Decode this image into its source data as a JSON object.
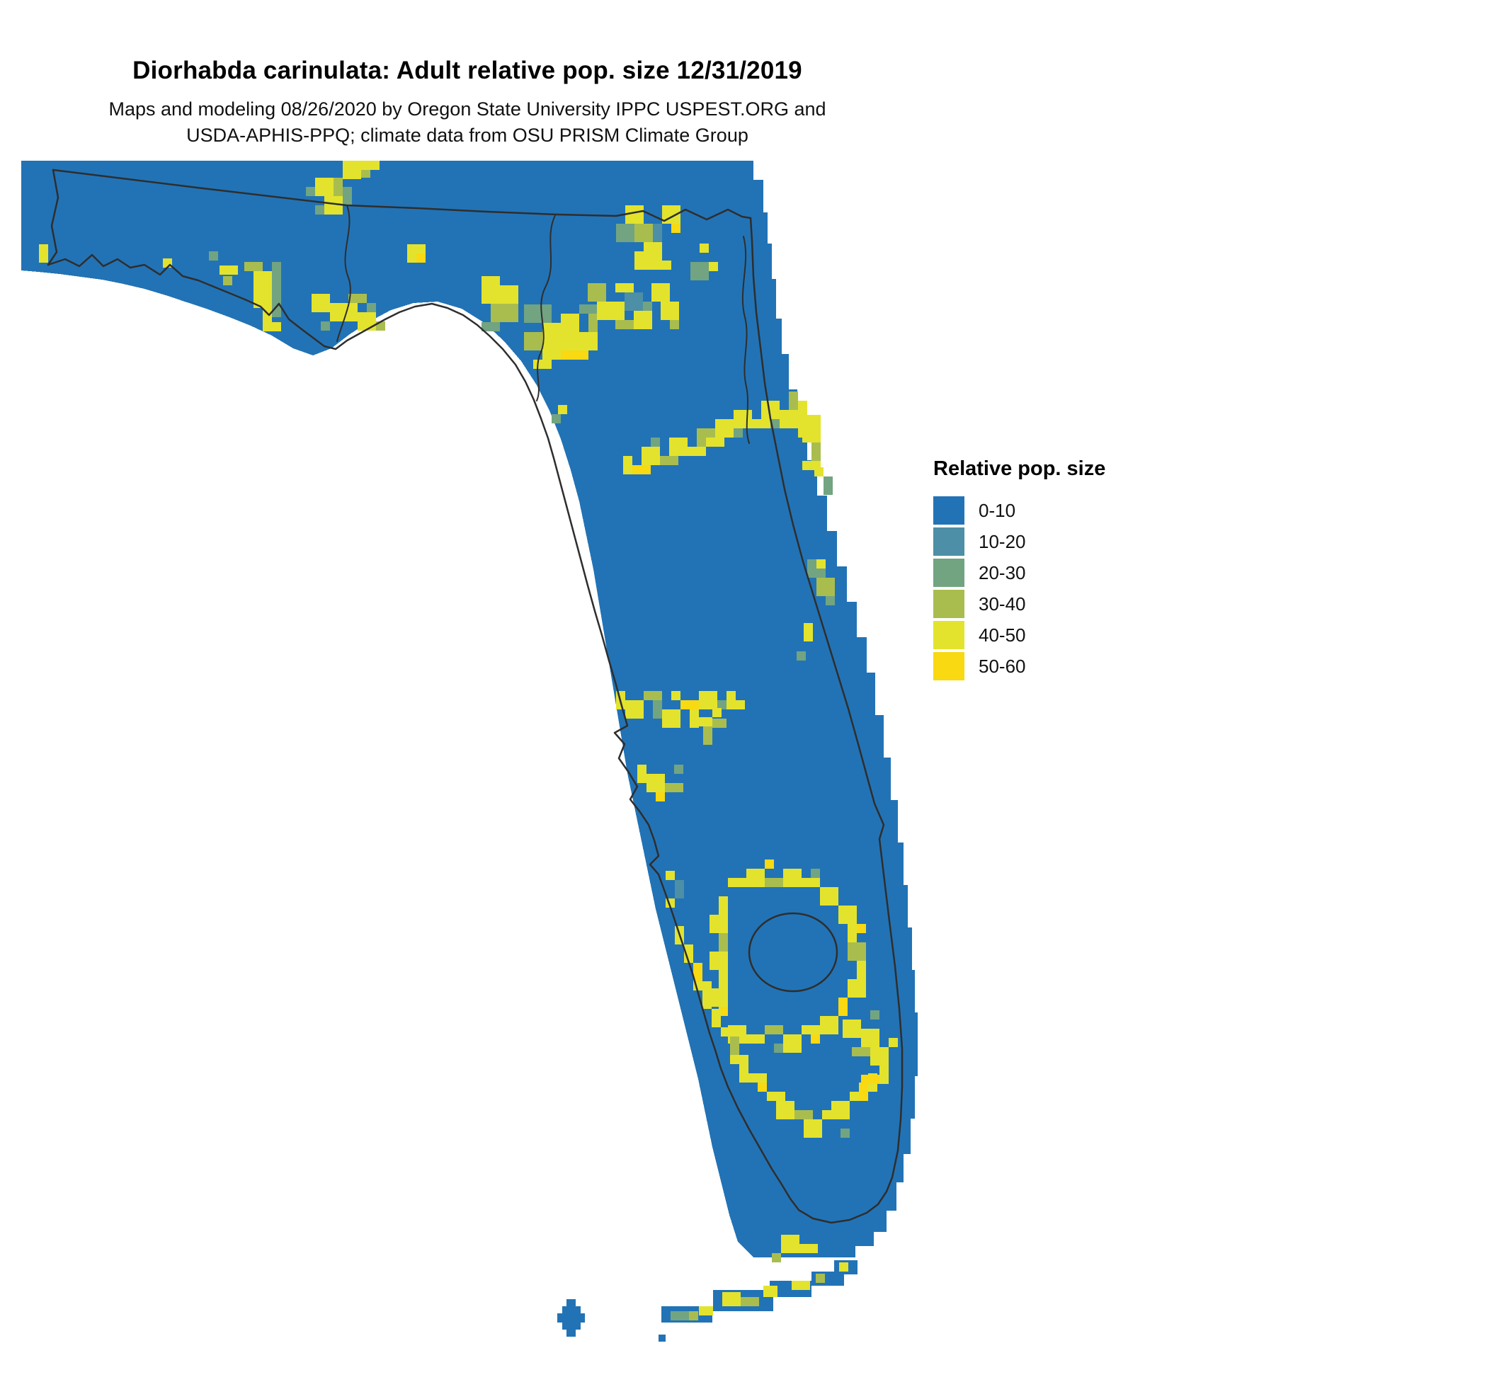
{
  "header": {
    "title": "Diorhabda carinulata: Adult relative pop. size 12/31/2019",
    "subtitle_line1": "Maps and modeling 08/26/2020 by Oregon State University IPPC USPEST.ORG and",
    "subtitle_line2": "USDA-APHIS-PPQ; climate data from OSU PRISM Climate Group"
  },
  "legend": {
    "title": "Relative pop. size",
    "items": [
      {
        "label": "0-10",
        "color": "#2273b5"
      },
      {
        "label": "10-20",
        "color": "#4d8fa6"
      },
      {
        "label": "20-30",
        "color": "#72a482"
      },
      {
        "label": "30-40",
        "color": "#a9bd4f"
      },
      {
        "label": "40-50",
        "color": "#e3e32e"
      },
      {
        "label": "50-60",
        "color": "#f8d912"
      }
    ]
  },
  "map": {
    "region": "Florida",
    "boundary_color": "#2e2e2e",
    "islands": [
      [
        1150,
        1556,
        33,
        20
      ],
      [
        1118,
        1572,
        46,
        20
      ],
      [
        1059,
        1585,
        59,
        23
      ],
      [
        979,
        1598,
        85,
        30
      ],
      [
        906,
        1621,
        72,
        23
      ],
      [
        766,
        1621,
        26,
        33
      ],
      [
        772,
        1611,
        13,
        53
      ],
      [
        759,
        1631,
        39,
        13
      ],
      [
        902,
        1661,
        10,
        10
      ]
    ],
    "patches": [
      [
        404,
        40,
        13,
        13,
        2
      ],
      [
        417,
        27,
        26,
        26,
        4
      ],
      [
        443,
        27,
        13,
        39,
        3
      ],
      [
        430,
        53,
        26,
        26,
        4
      ],
      [
        456,
        40,
        13,
        26,
        2
      ],
      [
        417,
        66,
        13,
        13,
        2
      ],
      [
        469,
        14,
        26,
        13,
        4
      ],
      [
        456,
        3,
        26,
        26,
        4
      ],
      [
        482,
        14,
        13,
        13,
        3
      ],
      [
        482,
        3,
        26,
        13,
        4
      ],
      [
        547,
        121,
        26,
        26,
        4
      ],
      [
        560,
        134,
        13,
        13,
        5
      ],
      [
        27,
        121,
        13,
        26,
        4
      ],
      [
        202,
        141,
        13,
        13,
        4
      ],
      [
        267,
        131,
        13,
        13,
        2
      ],
      [
        282,
        151,
        26,
        13,
        4
      ],
      [
        287,
        166,
        13,
        13,
        3
      ],
      [
        317,
        146,
        26,
        13,
        3
      ],
      [
        330,
        159,
        26,
        26,
        4
      ],
      [
        356,
        146,
        13,
        39,
        2
      ],
      [
        330,
        185,
        13,
        26,
        4
      ],
      [
        343,
        166,
        13,
        65,
        4
      ],
      [
        356,
        185,
        13,
        39,
        2
      ],
      [
        343,
        231,
        26,
        13,
        4
      ],
      [
        412,
        191,
        26,
        26,
        4
      ],
      [
        438,
        204,
        39,
        26,
        4
      ],
      [
        464,
        191,
        26,
        13,
        3
      ],
      [
        477,
        217,
        26,
        26,
        4
      ],
      [
        503,
        230,
        13,
        13,
        3
      ],
      [
        425,
        230,
        13,
        13,
        2
      ],
      [
        490,
        204,
        13,
        13,
        2
      ],
      [
        652,
        166,
        26,
        39,
        4
      ],
      [
        678,
        179,
        26,
        26,
        4
      ],
      [
        665,
        205,
        39,
        26,
        3
      ],
      [
        652,
        231,
        26,
        13,
        2
      ],
      [
        712,
        206,
        39,
        26,
        2
      ],
      [
        738,
        232,
        39,
        39,
        4
      ],
      [
        712,
        245,
        26,
        26,
        3
      ],
      [
        764,
        219,
        26,
        26,
        4
      ],
      [
        777,
        245,
        39,
        26,
        4
      ],
      [
        790,
        206,
        26,
        13,
        2
      ],
      [
        803,
        219,
        13,
        26,
        3
      ],
      [
        764,
        271,
        39,
        13,
        5
      ],
      [
        738,
        271,
        26,
        13,
        4
      ],
      [
        725,
        284,
        26,
        13,
        4
      ],
      [
        802,
        176,
        26,
        26,
        3
      ],
      [
        815,
        202,
        39,
        26,
        4
      ],
      [
        841,
        176,
        26,
        13,
        4
      ],
      [
        854,
        189,
        26,
        26,
        1
      ],
      [
        867,
        215,
        26,
        26,
        4
      ],
      [
        841,
        228,
        26,
        13,
        3
      ],
      [
        880,
        202,
        13,
        13,
        2
      ],
      [
        892,
        176,
        26,
        26,
        4
      ],
      [
        905,
        202,
        26,
        26,
        4
      ],
      [
        918,
        228,
        13,
        13,
        3
      ],
      [
        842,
        92,
        26,
        26,
        2
      ],
      [
        855,
        66,
        26,
        26,
        4
      ],
      [
        868,
        92,
        26,
        26,
        3
      ],
      [
        881,
        118,
        26,
        26,
        4
      ],
      [
        894,
        92,
        13,
        26,
        1
      ],
      [
        868,
        131,
        26,
        26,
        4
      ],
      [
        894,
        144,
        26,
        13,
        4
      ],
      [
        907,
        66,
        26,
        26,
        4
      ],
      [
        920,
        92,
        13,
        13,
        5
      ],
      [
        947,
        146,
        26,
        26,
        2
      ],
      [
        973,
        146,
        13,
        13,
        4
      ],
      [
        960,
        120,
        13,
        13,
        4
      ],
      [
        751,
        361,
        13,
        13,
        2
      ],
      [
        760,
        348,
        13,
        13,
        4
      ],
      [
        852,
        420,
        13,
        26,
        4
      ],
      [
        865,
        433,
        26,
        13,
        5
      ],
      [
        878,
        407,
        26,
        26,
        4
      ],
      [
        904,
        420,
        26,
        13,
        3
      ],
      [
        891,
        394,
        13,
        13,
        2
      ],
      [
        917,
        394,
        26,
        26,
        4
      ],
      [
        943,
        407,
        26,
        13,
        4
      ],
      [
        956,
        381,
        26,
        26,
        3
      ],
      [
        969,
        394,
        26,
        13,
        4
      ],
      [
        982,
        368,
        26,
        26,
        4
      ],
      [
        1008,
        381,
        13,
        13,
        2
      ],
      [
        1008,
        355,
        26,
        26,
        4
      ],
      [
        1034,
        368,
        26,
        13,
        4
      ],
      [
        1047,
        342,
        26,
        26,
        4
      ],
      [
        1060,
        368,
        13,
        13,
        2
      ],
      [
        1073,
        355,
        26,
        26,
        4
      ],
      [
        1086,
        329,
        13,
        26,
        3
      ],
      [
        1099,
        342,
        13,
        39,
        4
      ],
      [
        1099,
        381,
        26,
        13,
        4
      ],
      [
        1105,
        362,
        26,
        39,
        4
      ],
      [
        1118,
        401,
        13,
        26,
        3
      ],
      [
        1105,
        427,
        26,
        13,
        4
      ],
      [
        1122,
        436,
        13,
        13,
        4
      ],
      [
        1135,
        449,
        13,
        26,
        2
      ],
      [
        1112,
        566,
        26,
        26,
        2
      ],
      [
        1125,
        592,
        26,
        26,
        3
      ],
      [
        1138,
        618,
        13,
        13,
        2
      ],
      [
        1125,
        566,
        13,
        13,
        4
      ],
      [
        1107,
        656,
        13,
        26,
        4
      ],
      [
        1097,
        696,
        13,
        13,
        2
      ],
      [
        842,
        752,
        13,
        26,
        4
      ],
      [
        855,
        765,
        26,
        26,
        4
      ],
      [
        881,
        752,
        26,
        13,
        3
      ],
      [
        894,
        765,
        13,
        26,
        2
      ],
      [
        907,
        778,
        26,
        26,
        4
      ],
      [
        920,
        752,
        13,
        13,
        4
      ],
      [
        933,
        765,
        26,
        13,
        5
      ],
      [
        946,
        778,
        13,
        26,
        4
      ],
      [
        959,
        752,
        26,
        26,
        4
      ],
      [
        985,
        765,
        13,
        13,
        2
      ],
      [
        972,
        791,
        26,
        13,
        3
      ],
      [
        998,
        752,
        13,
        26,
        4
      ],
      [
        1011,
        765,
        13,
        13,
        4
      ],
      [
        872,
        856,
        13,
        26,
        4
      ],
      [
        885,
        869,
        26,
        26,
        4
      ],
      [
        911,
        882,
        26,
        13,
        3
      ],
      [
        898,
        895,
        13,
        13,
        5
      ],
      [
        924,
        856,
        13,
        13,
        2
      ],
      [
        952,
        789,
        26,
        13,
        4
      ],
      [
        965,
        802,
        13,
        26,
        3
      ],
      [
        978,
        776,
        13,
        13,
        4
      ],
      [
        1000,
        1016,
        26,
        13,
        4
      ],
      [
        1026,
        1003,
        26,
        26,
        4
      ],
      [
        1052,
        1016,
        26,
        13,
        3
      ],
      [
        1078,
        1003,
        26,
        26,
        4
      ],
      [
        1104,
        1016,
        26,
        13,
        4
      ],
      [
        1130,
        1029,
        26,
        26,
        4
      ],
      [
        1052,
        990,
        13,
        13,
        5
      ],
      [
        1117,
        1003,
        13,
        13,
        2
      ],
      [
        1156,
        1055,
        26,
        26,
        4
      ],
      [
        1169,
        1081,
        13,
        26,
        4
      ],
      [
        1169,
        1107,
        26,
        26,
        3
      ],
      [
        1182,
        1133,
        13,
        26,
        4
      ],
      [
        1169,
        1159,
        26,
        26,
        4
      ],
      [
        1156,
        1185,
        13,
        26,
        5
      ],
      [
        1182,
        1081,
        13,
        13,
        5
      ],
      [
        1130,
        1211,
        26,
        26,
        4
      ],
      [
        1104,
        1224,
        26,
        13,
        4
      ],
      [
        1078,
        1237,
        26,
        26,
        4
      ],
      [
        1052,
        1224,
        26,
        13,
        3
      ],
      [
        1026,
        1237,
        26,
        13,
        4
      ],
      [
        1000,
        1224,
        26,
        26,
        4
      ],
      [
        1117,
        1237,
        13,
        13,
        5
      ],
      [
        1065,
        1250,
        13,
        13,
        2
      ],
      [
        987,
        1042,
        13,
        26,
        4
      ],
      [
        974,
        1068,
        26,
        26,
        4
      ],
      [
        987,
        1094,
        13,
        26,
        3
      ],
      [
        974,
        1120,
        26,
        26,
        4
      ],
      [
        987,
        1146,
        13,
        26,
        4
      ],
      [
        974,
        1172,
        26,
        26,
        4
      ],
      [
        987,
        1198,
        13,
        13,
        5
      ],
      [
        912,
        1006,
        13,
        13,
        4
      ],
      [
        925,
        1019,
        13,
        26,
        1
      ],
      [
        912,
        1045,
        13,
        13,
        4
      ],
      [
        925,
        1084,
        13,
        26,
        4
      ],
      [
        938,
        1110,
        13,
        26,
        4
      ],
      [
        951,
        1136,
        13,
        26,
        5
      ],
      [
        951,
        1162,
        26,
        13,
        4
      ],
      [
        964,
        1175,
        13,
        26,
        4
      ],
      [
        977,
        1201,
        13,
        26,
        4
      ],
      [
        990,
        1227,
        26,
        13,
        4
      ],
      [
        1003,
        1240,
        13,
        26,
        3
      ],
      [
        1003,
        1266,
        26,
        13,
        4
      ],
      [
        1016,
        1279,
        13,
        26,
        4
      ],
      [
        1029,
        1292,
        26,
        13,
        4
      ],
      [
        1042,
        1305,
        13,
        13,
        5
      ],
      [
        1055,
        1318,
        26,
        13,
        4
      ],
      [
        1068,
        1331,
        26,
        26,
        4
      ],
      [
        1094,
        1344,
        26,
        13,
        3
      ],
      [
        1107,
        1357,
        26,
        26,
        4
      ],
      [
        1133,
        1344,
        26,
        13,
        4
      ],
      [
        1146,
        1331,
        26,
        26,
        4
      ],
      [
        1172,
        1318,
        26,
        13,
        4
      ],
      [
        1185,
        1305,
        13,
        26,
        5
      ],
      [
        1159,
        1370,
        13,
        13,
        2
      ],
      [
        1198,
        1292,
        13,
        26,
        4
      ],
      [
        1162,
        1216,
        26,
        26,
        4
      ],
      [
        1188,
        1229,
        26,
        26,
        4
      ],
      [
        1175,
        1255,
        26,
        13,
        3
      ],
      [
        1201,
        1255,
        26,
        26,
        4
      ],
      [
        1214,
        1281,
        13,
        26,
        4
      ],
      [
        1188,
        1294,
        26,
        13,
        5
      ],
      [
        1201,
        1203,
        13,
        13,
        2
      ],
      [
        1227,
        1242,
        13,
        13,
        4
      ],
      [
        1075,
        1520,
        26,
        26,
        4
      ],
      [
        1101,
        1533,
        26,
        13,
        4
      ],
      [
        1062,
        1546,
        13,
        13,
        3
      ],
      [
        992,
        1601,
        26,
        20,
        4
      ],
      [
        1018,
        1608,
        26,
        13,
        3
      ],
      [
        1050,
        1592,
        20,
        16,
        4
      ],
      [
        959,
        1621,
        20,
        13,
        4
      ],
      [
        1090,
        1585,
        26,
        13,
        4
      ],
      [
        1124,
        1575,
        13,
        13,
        3
      ],
      [
        919,
        1628,
        26,
        13,
        2
      ],
      [
        1157,
        1559,
        13,
        13,
        4
      ],
      [
        945,
        1628,
        13,
        13,
        3
      ]
    ]
  }
}
